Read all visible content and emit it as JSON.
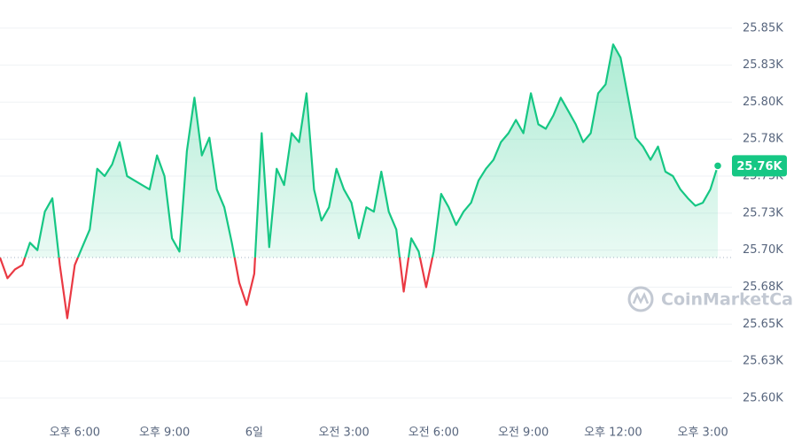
{
  "chart_data": {
    "type": "line",
    "values": [
      25695,
      25681,
      25687,
      25690,
      25705,
      25700,
      25726,
      25735,
      25690,
      25654,
      25690,
      25702,
      25714,
      25755,
      25750,
      25758,
      25773,
      25750,
      25747,
      25744,
      25741,
      25764,
      25750,
      25708,
      25699,
      25767,
      25803,
      25764,
      25776,
      25741,
      25729,
      25705,
      25678,
      25663,
      25684,
      25779,
      25702,
      25755,
      25744,
      25779,
      25773,
      25806,
      25741,
      25720,
      25729,
      25755,
      25741,
      25732,
      25708,
      25729,
      25726,
      25753,
      25726,
      25714,
      25672,
      25708,
      25699,
      25675,
      25699,
      25738,
      25729,
      25717,
      25726,
      25732,
      25747,
      25755,
      25761,
      25773,
      25779,
      25788,
      25779,
      25806,
      25785,
      25782,
      25791,
      25803,
      25794,
      25785,
      25773,
      25779,
      25806,
      25812,
      25839,
      25830,
      25803,
      25776,
      25770,
      25761,
      25770,
      25753,
      25750,
      25741,
      25735,
      25730,
      25732,
      25741,
      25757
    ],
    "baseline": 25695,
    "up_color": "#16c784",
    "down_color": "#ea3943",
    "current_price_label": "25.76K",
    "watermark": "CoinMarketCap",
    "xlim": [
      0,
      96
    ],
    "xticks": [
      {
        "value": 10,
        "label": "오후 6:00"
      },
      {
        "value": 22,
        "label": "오후 9:00"
      },
      {
        "value": 34,
        "label": "6일"
      },
      {
        "value": 46,
        "label": "오전 3:00"
      },
      {
        "value": 58,
        "label": "오전 6:00"
      },
      {
        "value": 70,
        "label": "오전 9:00"
      },
      {
        "value": 82,
        "label": "오후 12:00"
      },
      {
        "value": 94,
        "label": "오후 3:00"
      }
    ],
    "ylim": [
      25588,
      25869
    ],
    "yticks": [
      {
        "value": 25600,
        "label": "25.60K"
      },
      {
        "value": 25625,
        "label": "25.63K"
      },
      {
        "value": 25650,
        "label": "25.65K"
      },
      {
        "value": 25675,
        "label": "25.68K"
      },
      {
        "value": 25700,
        "label": "25.70K"
      },
      {
        "value": 25725,
        "label": "25.73K"
      },
      {
        "value": 25750,
        "label": "25.75K"
      },
      {
        "value": 25775,
        "label": "25.78K"
      },
      {
        "value": 25800,
        "label": "25.80K"
      },
      {
        "value": 25825,
        "label": "25.83K"
      },
      {
        "value": 25850,
        "label": "25.85K"
      }
    ],
    "grid": true
  }
}
